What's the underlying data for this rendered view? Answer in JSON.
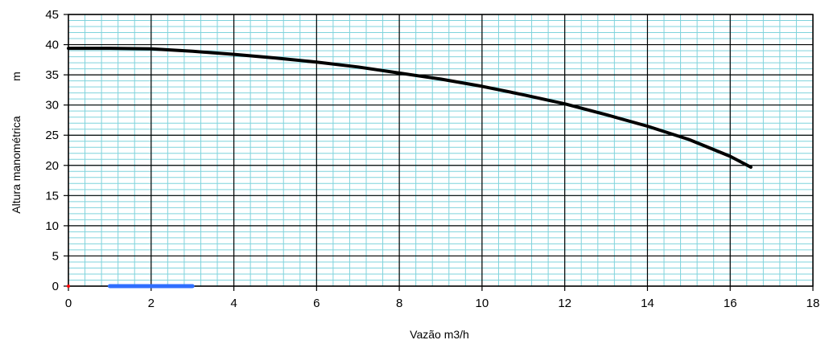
{
  "chart_data": {
    "type": "line",
    "title": "",
    "xlabel": "Vazão   m3/h",
    "ylabel": "Altura manométrica",
    "ylabel_unit": "m",
    "xlim": [
      0,
      18
    ],
    "ylim": [
      0,
      45
    ],
    "x_major_step": 2,
    "y_major_step": 5,
    "x_minor_step": 0.4,
    "y_minor_step": 1,
    "grid": true,
    "legend": "none",
    "colors": {
      "minor_grid": "#7fd3dc",
      "major_grid": "#000000",
      "curve": "#000000",
      "marker_bar": "#2f6fff",
      "origin_mark": "#ff0000"
    },
    "x_ticks": [
      "0",
      "2",
      "4",
      "6",
      "8",
      "10",
      "12",
      "14",
      "16",
      "18"
    ],
    "y_ticks": [
      "0",
      "5",
      "10",
      "15",
      "20",
      "25",
      "30",
      "35",
      "40",
      "45"
    ],
    "series": [
      {
        "x": [
          0,
          1,
          2,
          3,
          4,
          5,
          6,
          7,
          8,
          9,
          10,
          11,
          12,
          13,
          14,
          15,
          16,
          16.5
        ],
        "y": [
          39.4,
          39.4,
          39.3,
          38.9,
          38.4,
          37.8,
          37.1,
          36.3,
          35.3,
          34.3,
          33.1,
          31.7,
          30.2,
          28.4,
          26.5,
          24.3,
          21.5,
          19.7
        ]
      }
    ],
    "annotations": [
      {
        "type": "bar",
        "x_start": 1,
        "x_end": 3,
        "y": 0,
        "color": "#2f6fff"
      }
    ]
  }
}
